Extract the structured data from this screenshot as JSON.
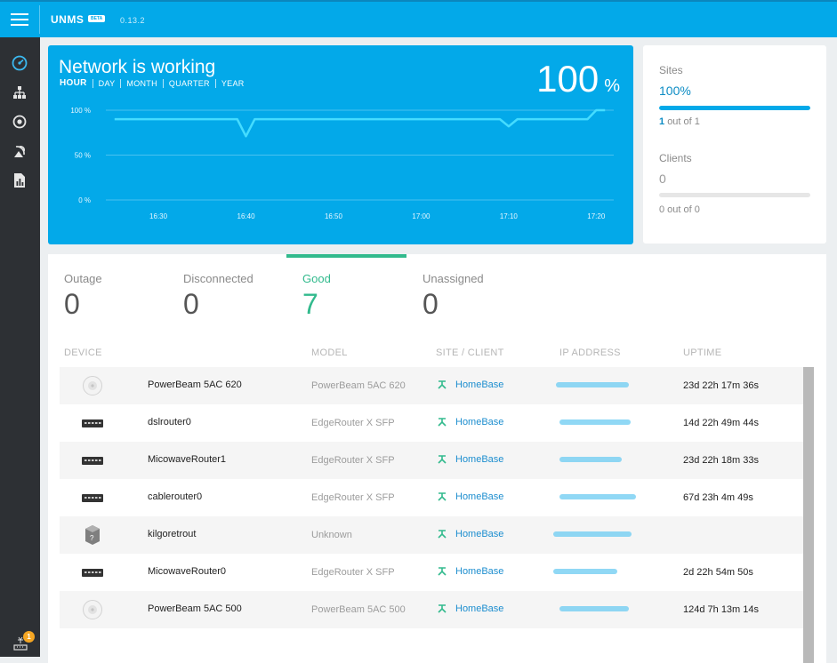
{
  "header": {
    "logo": "UNMS",
    "beta": "BETA",
    "version": "0.13.2"
  },
  "sidebar": {
    "items": [
      {
        "name": "dashboard-icon"
      },
      {
        "name": "sites-icon"
      },
      {
        "name": "devices-icon"
      },
      {
        "name": "antenna-icon"
      },
      {
        "name": "reports-icon"
      }
    ],
    "notifications": {
      "count": "1"
    }
  },
  "network": {
    "title": "Network is working",
    "ranges": [
      "HOUR",
      "DAY",
      "MONTH",
      "QUARTER",
      "YEAR"
    ],
    "percent": "100",
    "percent_unit": "%"
  },
  "chart_data": {
    "type": "line",
    "x": [
      "16:25",
      "16:27",
      "16:29",
      "16:31",
      "16:33",
      "16:35",
      "16:37",
      "16:39",
      "16:40",
      "16:41",
      "16:43",
      "16:45",
      "16:47",
      "16:49",
      "16:51",
      "16:53",
      "16:55",
      "16:57",
      "16:59",
      "17:01",
      "17:03",
      "17:05",
      "17:07",
      "17:09",
      "17:10",
      "17:11",
      "17:13",
      "17:15",
      "17:17",
      "17:19",
      "17:20",
      "17:21"
    ],
    "y": [
      90,
      90,
      90,
      90,
      90,
      90,
      90,
      90,
      71,
      90,
      90,
      90,
      90,
      90,
      90,
      90,
      90,
      90,
      90,
      90,
      90,
      90,
      90,
      90,
      82,
      90,
      90,
      90,
      90,
      90,
      100,
      100
    ],
    "xticks": [
      "16:30",
      "16:40",
      "16:50",
      "17:00",
      "17:10",
      "17:20"
    ],
    "yticks": [
      "100 %",
      "50 %",
      "0 %"
    ],
    "ylim": [
      0,
      100
    ],
    "grid": true
  },
  "sites": {
    "label": "Sites",
    "value": "100%",
    "fraction": 1,
    "count": "1",
    "sub": "out of 1"
  },
  "clients": {
    "label": "Clients",
    "value": "0",
    "fraction": 0,
    "sub": "0 out of 0"
  },
  "stats": [
    {
      "label": "Outage",
      "count": "0"
    },
    {
      "label": "Disconnected",
      "count": "0"
    },
    {
      "label": "Good",
      "count": "7"
    },
    {
      "label": "Unassigned",
      "count": "0"
    }
  ],
  "table": {
    "columns": [
      "DEVICE",
      "MODEL",
      "SITE / CLIENT",
      "IP ADDRESS",
      "UPTIME"
    ],
    "rows": [
      {
        "icon": "antenna-dish-icon",
        "name": "PowerBeam 5AC 620",
        "model": "PowerBeam 5AC 620",
        "site": "HomeBase",
        "uptime": "23d 22h 17m 36s"
      },
      {
        "icon": "router-icon",
        "name": "dslrouter0",
        "model": "EdgeRouter X SFP",
        "site": "HomeBase",
        "uptime": "14d 22h 49m 44s"
      },
      {
        "icon": "router-icon",
        "name": "MicowaveRouter1",
        "model": "EdgeRouter X SFP",
        "site": "HomeBase",
        "uptime": "23d 22h 18m 33s"
      },
      {
        "icon": "router-icon",
        "name": "cablerouter0",
        "model": "EdgeRouter X SFP",
        "site": "HomeBase",
        "uptime": "67d 23h 4m 49s"
      },
      {
        "icon": "unknown-device-icon",
        "name": "kilgoretrout",
        "model": "Unknown",
        "site": "HomeBase",
        "uptime": ""
      },
      {
        "icon": "router-icon",
        "name": "MicowaveRouter0",
        "model": "EdgeRouter X SFP",
        "site": "HomeBase",
        "uptime": "2d 22h 54m 50s"
      },
      {
        "icon": "antenna-dish-icon",
        "name": "PowerBeam 5AC 500",
        "model": "PowerBeam 5AC 500",
        "site": "HomeBase",
        "uptime": "124d 7h 13m 14s"
      }
    ]
  }
}
